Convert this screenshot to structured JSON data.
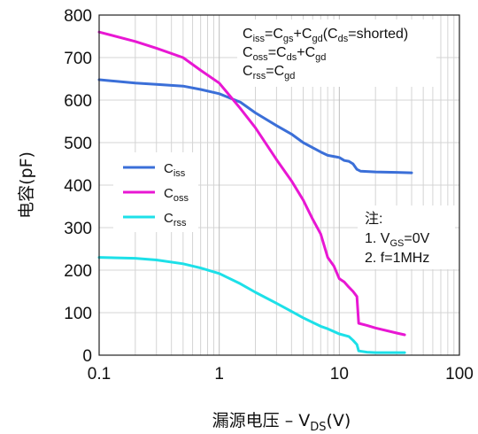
{
  "chart_data": {
    "type": "line",
    "xscale": "log",
    "xlim": [
      0.1,
      100
    ],
    "ylim": [
      0,
      800
    ],
    "x_ticks": [
      {
        "value": 0.1,
        "label": "0.1"
      },
      {
        "value": 1,
        "label": "1"
      },
      {
        "value": 10,
        "label": "10"
      },
      {
        "value": 100,
        "label": "100"
      }
    ],
    "y_ticks": [
      0,
      100,
      200,
      300,
      400,
      500,
      600,
      700,
      800
    ],
    "xlabel": {
      "main": "漏源电压 – V",
      "sub": "DS",
      "unit": "(V)"
    },
    "ylabel": "电容(pF)",
    "grid": true,
    "legend_position": "left-center",
    "series": [
      {
        "name": "C",
        "name_sub": "iss",
        "color": "#3b6fd8",
        "points": [
          [
            0.1,
            648
          ],
          [
            0.2,
            640
          ],
          [
            0.3,
            637
          ],
          [
            0.5,
            633
          ],
          [
            0.7,
            625
          ],
          [
            1.0,
            615
          ],
          [
            1.5,
            595
          ],
          [
            2,
            570
          ],
          [
            3,
            540
          ],
          [
            4,
            520
          ],
          [
            5,
            500
          ],
          [
            7,
            478
          ],
          [
            8,
            470
          ],
          [
            10,
            465
          ],
          [
            11,
            458
          ],
          [
            12,
            456
          ],
          [
            13,
            450
          ],
          [
            14,
            437
          ],
          [
            15,
            433
          ],
          [
            20,
            431
          ],
          [
            30,
            430
          ],
          [
            40,
            429
          ]
        ]
      },
      {
        "name": "C",
        "name_sub": "oss",
        "color": "#e817d3",
        "points": [
          [
            0.1,
            760
          ],
          [
            0.2,
            738
          ],
          [
            0.3,
            722
          ],
          [
            0.5,
            700
          ],
          [
            0.7,
            670
          ],
          [
            1.0,
            640
          ],
          [
            1.5,
            580
          ],
          [
            2,
            535
          ],
          [
            3,
            460
          ],
          [
            4,
            410
          ],
          [
            5,
            365
          ],
          [
            6,
            320
          ],
          [
            7,
            285
          ],
          [
            8,
            230
          ],
          [
            9,
            210
          ],
          [
            10,
            180
          ],
          [
            11,
            172
          ],
          [
            12,
            160
          ],
          [
            13,
            150
          ],
          [
            14,
            138
          ],
          [
            14.5,
            75
          ],
          [
            17,
            70
          ],
          [
            20,
            64
          ],
          [
            30,
            52
          ],
          [
            35,
            48
          ]
        ]
      },
      {
        "name": "C",
        "name_sub": "rss",
        "color": "#1de0e8",
        "points": [
          [
            0.1,
            230
          ],
          [
            0.2,
            228
          ],
          [
            0.3,
            224
          ],
          [
            0.5,
            215
          ],
          [
            0.7,
            205
          ],
          [
            1.0,
            192
          ],
          [
            1.5,
            168
          ],
          [
            2,
            148
          ],
          [
            3,
            122
          ],
          [
            4,
            103
          ],
          [
            5,
            88
          ],
          [
            6,
            77
          ],
          [
            7,
            68
          ],
          [
            8,
            62
          ],
          [
            10,
            50
          ],
          [
            12,
            44
          ],
          [
            13,
            35
          ],
          [
            14,
            25
          ],
          [
            14.5,
            10
          ],
          [
            17,
            7
          ],
          [
            20,
            6
          ],
          [
            30,
            6
          ],
          [
            35,
            6
          ]
        ]
      }
    ],
    "annotations": {
      "formulas": [
        [
          [
            "C",
            ""
          ],
          [
            "iss",
            "sub"
          ],
          [
            "=C",
            ""
          ],
          [
            "gs",
            "sub"
          ],
          [
            "+C",
            ""
          ],
          [
            "gd",
            "sub"
          ],
          [
            "(C",
            ""
          ],
          [
            "ds",
            "sub"
          ],
          [
            "=shorted)",
            ""
          ]
        ],
        [
          [
            "C",
            ""
          ],
          [
            "oss",
            "sub"
          ],
          [
            "=C",
            ""
          ],
          [
            "ds",
            "sub"
          ],
          [
            "+C",
            ""
          ],
          [
            "gd",
            "sub"
          ]
        ],
        [
          [
            "C",
            ""
          ],
          [
            "rss",
            "sub"
          ],
          [
            "=C",
            ""
          ],
          [
            "gd",
            "sub"
          ]
        ]
      ],
      "notes": [
        [
          [
            "注:",
            ""
          ]
        ],
        [
          [
            "1. V",
            ""
          ],
          [
            "GS",
            "sub"
          ],
          [
            "=0V",
            ""
          ]
        ],
        [
          [
            "2. f=1MHz",
            ""
          ]
        ]
      ]
    }
  }
}
